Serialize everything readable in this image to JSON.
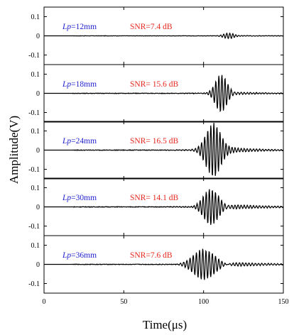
{
  "chart_data": [
    {
      "type": "line",
      "annotations": {
        "lp_prefix": "Lp",
        "lp_value": "=12mm",
        "snr": "SNR=7.4 dB"
      },
      "xlim": [
        0,
        150
      ],
      "ylim": [
        -0.15,
        0.15
      ],
      "yticks": [
        0.1,
        0,
        -0.1
      ],
      "ytick_labels": [
        "0.1",
        "0",
        "-0.1"
      ],
      "signal": {
        "onset": 18,
        "center": 116,
        "amplitude": 0.015,
        "width": 3.5,
        "freq": 0.52,
        "noise": 0.0018,
        "tail": 0.0025
      }
    },
    {
      "type": "line",
      "annotations": {
        "lp_prefix": "Lp",
        "lp_value": "=18mm",
        "snr": "SNR= 15.6 dB"
      },
      "xlim": [
        0,
        150
      ],
      "ylim": [
        -0.15,
        0.15
      ],
      "yticks": [
        0.1,
        0,
        -0.1
      ],
      "ytick_labels": [
        "0.1",
        "0",
        "-0.1"
      ],
      "signal": {
        "onset": 18,
        "center": 111,
        "amplitude": 0.1,
        "width": 3.6,
        "freq": 0.52,
        "noise": 0.003,
        "tail": 0.008
      }
    },
    {
      "type": "line",
      "annotations": {
        "lp_prefix": "Lp",
        "lp_value": "=24mm",
        "snr": "SNR= 16.5 dB"
      },
      "xlim": [
        0,
        150
      ],
      "ylim": [
        -0.15,
        0.15
      ],
      "yticks": [
        0.1,
        0,
        -0.1
      ],
      "ytick_labels": [
        "0.1",
        "0",
        "-0.1"
      ],
      "signal": {
        "onset": 18,
        "center": 106,
        "amplitude": 0.13,
        "width": 4.5,
        "freq": 0.52,
        "noise": 0.003,
        "tail": 0.018
      }
    },
    {
      "type": "line",
      "annotations": {
        "lp_prefix": "Lp",
        "lp_value": "=30mm",
        "snr": "SNR= 14.1 dB"
      },
      "xlim": [
        0,
        150
      ],
      "ylim": [
        -0.15,
        0.15
      ],
      "yticks": [
        0.1,
        0,
        -0.1
      ],
      "ytick_labels": [
        "0.1",
        "0",
        "-0.1"
      ],
      "signal": {
        "onset": 18,
        "center": 105,
        "amplitude": 0.105,
        "width": 5.0,
        "freq": 0.52,
        "noise": 0.003,
        "tail": 0.02
      }
    },
    {
      "type": "line",
      "annotations": {
        "lp_prefix": "Lp",
        "lp_value": "=36mm",
        "snr": "SNR=7.6 dB"
      },
      "xlim": [
        0,
        150
      ],
      "ylim": [
        -0.15,
        0.15
      ],
      "yticks": [
        0.1,
        0,
        -0.1
      ],
      "ytick_labels": [
        "0.1",
        "0",
        "-0.1"
      ],
      "xticks": [
        0,
        50,
        100,
        150
      ],
      "xtick_labels": [
        "0",
        "50",
        "100",
        "150"
      ],
      "signal": {
        "onset": 18,
        "center": 101,
        "amplitude": 0.095,
        "width": 7.0,
        "freq": 0.5,
        "noise": 0.003,
        "tail": 0.022
      }
    }
  ],
  "xlabel": "Time(μs)",
  "ylabel": "Amplitude(V)",
  "colors": {
    "lp_text": "#1f1fcf",
    "snr_text": "#e8271e",
    "trace": "#000000",
    "axes": "#000000"
  }
}
